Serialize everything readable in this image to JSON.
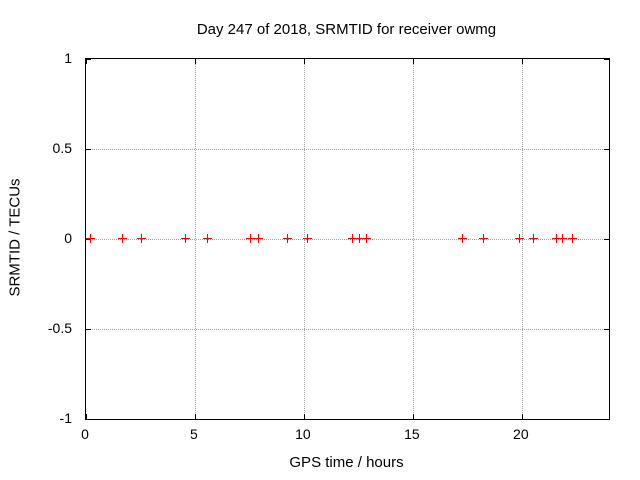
{
  "chart_data": {
    "type": "scatter",
    "title": "Day 247 of 2018, SRMTID for receiver owmg",
    "xlabel": "GPS time / hours",
    "ylabel": "SRMTID / TECUs",
    "xlim": [
      0,
      24
    ],
    "ylim": [
      -1,
      1
    ],
    "x_ticks": [
      0,
      5,
      10,
      15,
      20
    ],
    "x_tick_labels": [
      "0",
      "5",
      "10",
      "15",
      "20"
    ],
    "y_ticks": [
      -1,
      -0.5,
      0,
      0.5,
      1
    ],
    "y_tick_labels": [
      "-1",
      "-0.5",
      "0",
      "0.5",
      "1"
    ],
    "grid": true,
    "legend": "none",
    "marker": "plus",
    "series": [
      {
        "name": "SRMTID",
        "x": [
          0.23,
          1.7,
          2.57,
          4.59,
          5.6,
          7.57,
          7.94,
          9.27,
          10.19,
          12.25,
          12.57,
          12.89,
          17.3,
          18.26,
          19.92,
          20.56,
          21.61,
          21.89,
          22.35
        ],
        "y": [
          0,
          0,
          0,
          0,
          0,
          0,
          0,
          0,
          0,
          0,
          0,
          0,
          0,
          0,
          0,
          0,
          0,
          0,
          0
        ]
      }
    ]
  },
  "colors": {
    "marker": "#ff0000",
    "grid": "#a0a0a0",
    "border": "#000000",
    "background": "#ffffff",
    "text": "#000000"
  }
}
